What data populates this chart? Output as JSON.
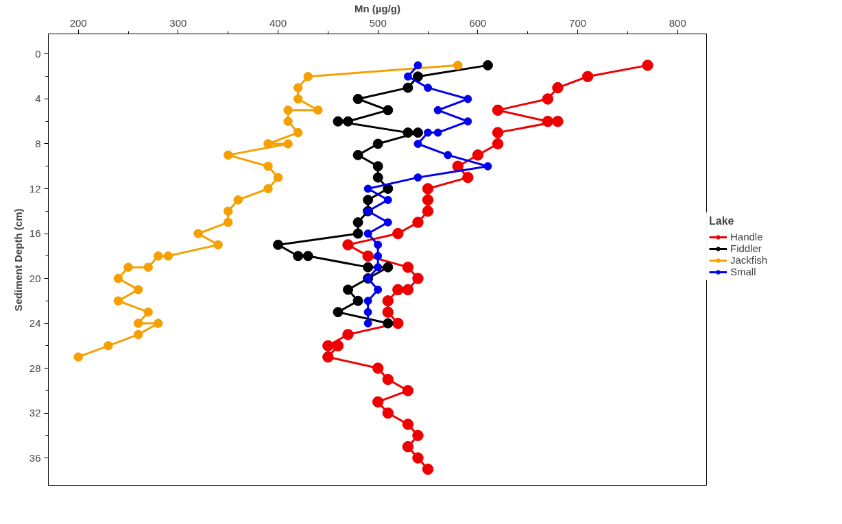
{
  "chart_data": {
    "type": "line",
    "xlabel": "Mn (µg/g)",
    "ylabel": "Sediment Depth (cm)",
    "legend_title": "Lake",
    "legend": "right",
    "marker": "circle",
    "line_style": "solid",
    "grid": false,
    "xlim": [
      170,
      829
    ],
    "xticks": [
      200,
      300,
      400,
      500,
      600,
      700,
      800
    ],
    "ylim": [
      38.5,
      -1.8
    ],
    "yticks": [
      0,
      4,
      8,
      12,
      16,
      20,
      24,
      28,
      32,
      36
    ],
    "series": [
      {
        "name": "Handle",
        "color": "#ee0000",
        "x": [
          770,
          710,
          680,
          670,
          620,
          670,
          680,
          620,
          620,
          600,
          580,
          590,
          550,
          550,
          550,
          540,
          520,
          470,
          490,
          530,
          540,
          530,
          520,
          510,
          510,
          520,
          470,
          450,
          460,
          450,
          500,
          510,
          530,
          500,
          510,
          530,
          540,
          530,
          540,
          550
        ],
        "values": [
          1,
          2,
          3,
          4,
          5,
          6,
          6,
          7,
          8,
          9,
          10,
          11,
          12,
          13,
          14,
          15,
          16,
          17,
          18,
          19,
          20,
          21,
          21,
          22,
          23,
          24,
          25,
          26,
          26,
          27,
          28,
          29,
          30,
          31,
          32,
          33,
          34,
          35,
          36,
          37
        ]
      },
      {
        "name": "Fiddler",
        "color": "#000000",
        "x": [
          610,
          540,
          530,
          480,
          510,
          470,
          460,
          530,
          540,
          500,
          480,
          500,
          500,
          510,
          490,
          490,
          480,
          480,
          400,
          420,
          430,
          490,
          510,
          490,
          470,
          480,
          460,
          510
        ],
        "values": [
          1,
          2,
          3,
          4,
          5,
          6,
          6,
          7,
          7,
          8,
          9,
          10,
          11,
          12,
          13,
          14,
          15,
          16,
          17,
          18,
          18,
          19,
          19,
          20,
          21,
          22,
          23,
          24
        ]
      },
      {
        "name": "Jackfish",
        "color": "#f5a000",
        "x": [
          580,
          430,
          420,
          420,
          440,
          410,
          410,
          420,
          390,
          410,
          350,
          390,
          400,
          390,
          360,
          350,
          350,
          320,
          340,
          290,
          280,
          270,
          250,
          240,
          260,
          240,
          270,
          260,
          280,
          260,
          230,
          200
        ],
        "values": [
          1,
          2,
          3,
          4,
          5,
          5,
          6,
          7,
          8,
          8,
          9,
          10,
          11,
          12,
          13,
          14,
          15,
          16,
          17,
          18,
          18,
          19,
          19,
          20,
          21,
          22,
          23,
          24,
          24,
          25,
          26,
          27
        ]
      },
      {
        "name": "Small",
        "color": "#0000ee",
        "x": [
          540,
          530,
          550,
          590,
          560,
          590,
          560,
          550,
          540,
          570,
          610,
          540,
          490,
          510,
          490,
          510,
          490,
          500,
          500,
          500,
          490,
          500,
          490,
          490,
          490
        ],
        "values": [
          1,
          2,
          3,
          4,
          5,
          6,
          7,
          7,
          8,
          9,
          10,
          11,
          12,
          13,
          14,
          15,
          16,
          17,
          18,
          19,
          20,
          21,
          22,
          23,
          24
        ]
      }
    ]
  }
}
